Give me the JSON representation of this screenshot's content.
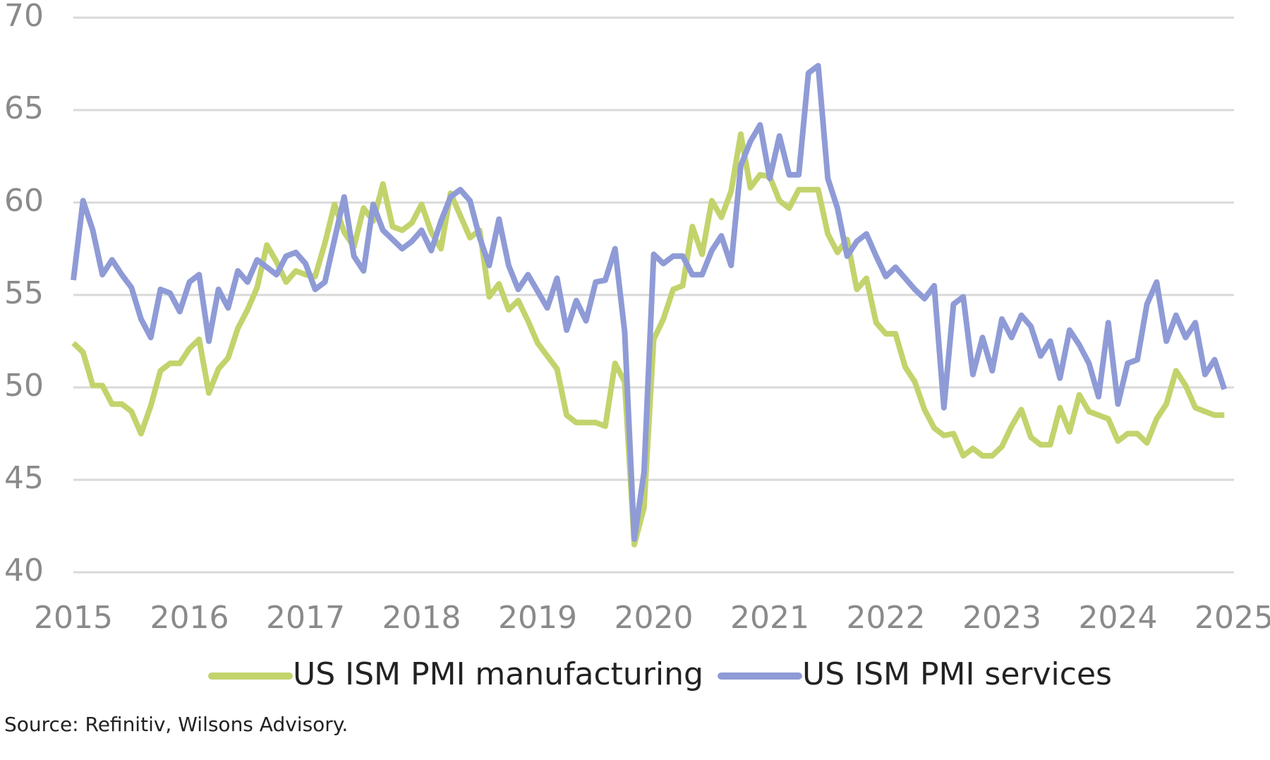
{
  "chart_data": {
    "type": "line",
    "x": [
      2015,
      2015.083,
      2015.167,
      2015.25,
      2015.333,
      2015.417,
      2015.5,
      2015.583,
      2015.667,
      2015.75,
      2015.833,
      2015.917,
      2016,
      2016.083,
      2016.167,
      2016.25,
      2016.333,
      2016.417,
      2016.5,
      2016.583,
      2016.667,
      2016.75,
      2016.833,
      2016.917,
      2017,
      2017.083,
      2017.167,
      2017.25,
      2017.333,
      2017.417,
      2017.5,
      2017.583,
      2017.667,
      2017.75,
      2017.833,
      2017.917,
      2018,
      2018.083,
      2018.167,
      2018.25,
      2018.333,
      2018.417,
      2018.5,
      2018.583,
      2018.667,
      2018.75,
      2018.833,
      2018.917,
      2019,
      2019.083,
      2019.167,
      2019.25,
      2019.333,
      2019.417,
      2019.5,
      2019.583,
      2019.667,
      2019.75,
      2019.833,
      2019.917,
      2020,
      2020.083,
      2020.167,
      2020.25,
      2020.333,
      2020.417,
      2020.5,
      2020.583,
      2020.667,
      2020.75,
      2020.833,
      2020.917,
      2021,
      2021.083,
      2021.167,
      2021.25,
      2021.333,
      2021.417,
      2021.5,
      2021.583,
      2021.667,
      2021.75,
      2021.833,
      2021.917,
      2022,
      2022.083,
      2022.167,
      2022.25,
      2022.333,
      2022.417,
      2022.5,
      2022.583,
      2022.667,
      2022.75,
      2022.833,
      2022.917,
      2023,
      2023.083,
      2023.167,
      2023.25,
      2023.333,
      2023.417,
      2023.5,
      2023.583,
      2023.667,
      2023.75,
      2023.833,
      2023.917,
      2024,
      2024.083,
      2024.167,
      2024.25,
      2024.333,
      2024.417,
      2024.5,
      2024.583,
      2024.667,
      2024.75,
      2024.833,
      2024.917
    ],
    "series": [
      {
        "name": "US ISM PMI manufacturing",
        "color": "#c3d36c",
        "values": [
          52.4,
          51.9,
          50.1,
          50.1,
          49.1,
          49.1,
          48.7,
          47.5,
          49.0,
          50.9,
          51.3,
          51.3,
          52.1,
          52.6,
          49.7,
          51.0,
          51.6,
          53.2,
          54.2,
          55.4,
          57.7,
          56.8,
          55.7,
          56.3,
          56.1,
          56.0,
          57.8,
          59.9,
          58.4,
          57.6,
          59.7,
          59.0,
          61.0,
          58.7,
          58.5,
          58.9,
          59.9,
          58.4,
          57.5,
          60.5,
          59.3,
          58.1,
          58.5,
          54.9,
          55.6,
          54.2,
          54.7,
          53.6,
          52.4,
          51.7,
          51.0,
          48.5,
          48.1,
          48.1,
          48.1,
          47.9,
          51.3,
          50.3,
          41.5,
          43.5,
          52.6,
          53.7,
          55.3,
          55.5,
          58.7,
          57.2,
          60.1,
          59.2,
          60.6,
          63.7,
          60.8,
          61.5,
          61.4,
          60.1,
          59.7,
          60.7,
          60.7,
          60.7,
          58.3,
          57.3,
          58.0,
          55.3,
          55.9,
          53.5,
          52.9,
          52.9,
          51.1,
          50.3,
          48.8,
          47.8,
          47.4,
          47.5,
          46.3,
          46.7,
          46.3,
          46.3,
          46.8,
          47.9,
          48.8,
          47.3,
          46.9,
          46.9,
          48.9,
          47.6,
          49.6,
          48.7,
          48.5,
          48.3,
          47.1,
          47.5,
          47.5,
          47.0,
          48.3,
          49.1,
          50.9,
          50.1,
          48.9,
          48.7,
          48.5,
          48.5
        ]
      },
      {
        "name": "US ISM PMI services",
        "color": "#8f9bd6",
        "values": [
          55.8,
          60.1,
          58.5,
          56.1,
          56.9,
          56.1,
          55.4,
          53.7,
          52.7,
          55.3,
          55.1,
          54.1,
          55.7,
          56.1,
          52.5,
          55.3,
          54.3,
          56.3,
          55.7,
          56.9,
          56.5,
          56.1,
          57.1,
          57.3,
          56.7,
          55.3,
          55.7,
          58.0,
          60.3,
          57.1,
          56.3,
          59.9,
          58.5,
          58.0,
          57.5,
          57.9,
          58.5,
          57.4,
          59.0,
          60.3,
          60.7,
          60.1,
          58.1,
          56.6,
          59.1,
          56.6,
          55.3,
          56.1,
          55.2,
          54.3,
          55.9,
          53.1,
          54.7,
          53.6,
          55.7,
          55.8,
          57.5,
          53.0,
          41.8,
          45.4,
          57.2,
          56.7,
          57.1,
          57.1,
          56.1,
          56.1,
          57.4,
          58.2,
          56.6,
          62.0,
          63.3,
          64.2,
          61.3,
          63.6,
          61.5,
          61.5,
          67.0,
          67.4,
          61.3,
          59.7,
          57.1,
          57.9,
          58.3,
          57.1,
          56.0,
          56.5,
          55.9,
          55.3,
          54.8,
          55.5,
          48.9,
          54.5,
          54.9,
          50.7,
          52.7,
          50.9,
          53.7,
          52.7,
          53.9,
          53.3,
          51.7,
          52.5,
          50.5,
          53.1,
          52.3,
          51.3,
          49.5,
          53.5,
          49.1,
          51.3,
          51.5,
          54.5,
          55.7,
          52.5,
          53.9,
          52.7,
          53.5,
          50.7,
          51.5,
          49.9
        ]
      }
    ],
    "xlim": [
      2015,
      2025
    ],
    "xticks": [
      2015,
      2016,
      2017,
      2018,
      2019,
      2020,
      2021,
      2022,
      2023,
      2024,
      2025
    ],
    "ylim": [
      40,
      70
    ],
    "yticks": [
      40,
      45,
      50,
      55,
      60,
      65,
      70
    ],
    "grid": true,
    "legend": "bottom",
    "source": "Source: Refinitiv, Wilsons Advisory."
  }
}
